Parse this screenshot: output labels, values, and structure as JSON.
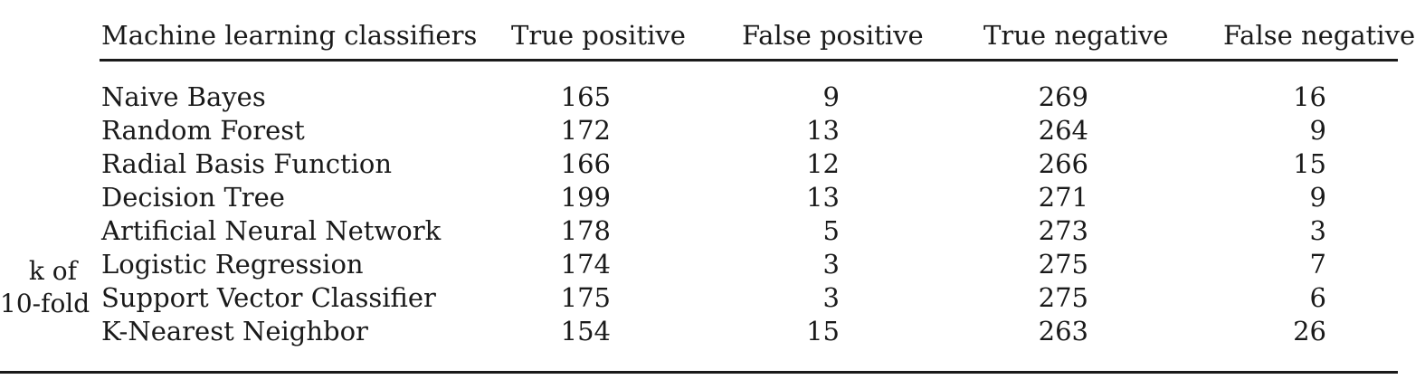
{
  "side_caption": {
    "line1": "k of",
    "line2": "10-fold"
  },
  "table": {
    "headers": {
      "classifier": "Machine learning classifiers",
      "true_positive": "True positive",
      "false_positive": "False positive",
      "true_negative": "True negative",
      "false_negative": "False negative"
    },
    "rows": [
      {
        "classifier": "Naive Bayes",
        "tp": "165",
        "fp": "9",
        "tn": "269",
        "fn": "16"
      },
      {
        "classifier": "Random Forest",
        "tp": "172",
        "fp": "13",
        "tn": "264",
        "fn": "9"
      },
      {
        "classifier": "Radial Basis Function",
        "tp": "166",
        "fp": "12",
        "tn": "266",
        "fn": "15"
      },
      {
        "classifier": "Decision Tree",
        "tp": "199",
        "fp": "13",
        "tn": "271",
        "fn": "9"
      },
      {
        "classifier": "Artificial Neural Network",
        "tp": "178",
        "fp": "5",
        "tn": "273",
        "fn": "3"
      },
      {
        "classifier": "Logistic Regression",
        "tp": "174",
        "fp": "3",
        "tn": "275",
        "fn": "7"
      },
      {
        "classifier": "Support Vector Classifier",
        "tp": "175",
        "fp": "3",
        "tn": "275",
        "fn": "6"
      },
      {
        "classifier": "K-Nearest Neighbor",
        "tp": "154",
        "fp": "15",
        "tn": "263",
        "fn": "26"
      }
    ]
  }
}
